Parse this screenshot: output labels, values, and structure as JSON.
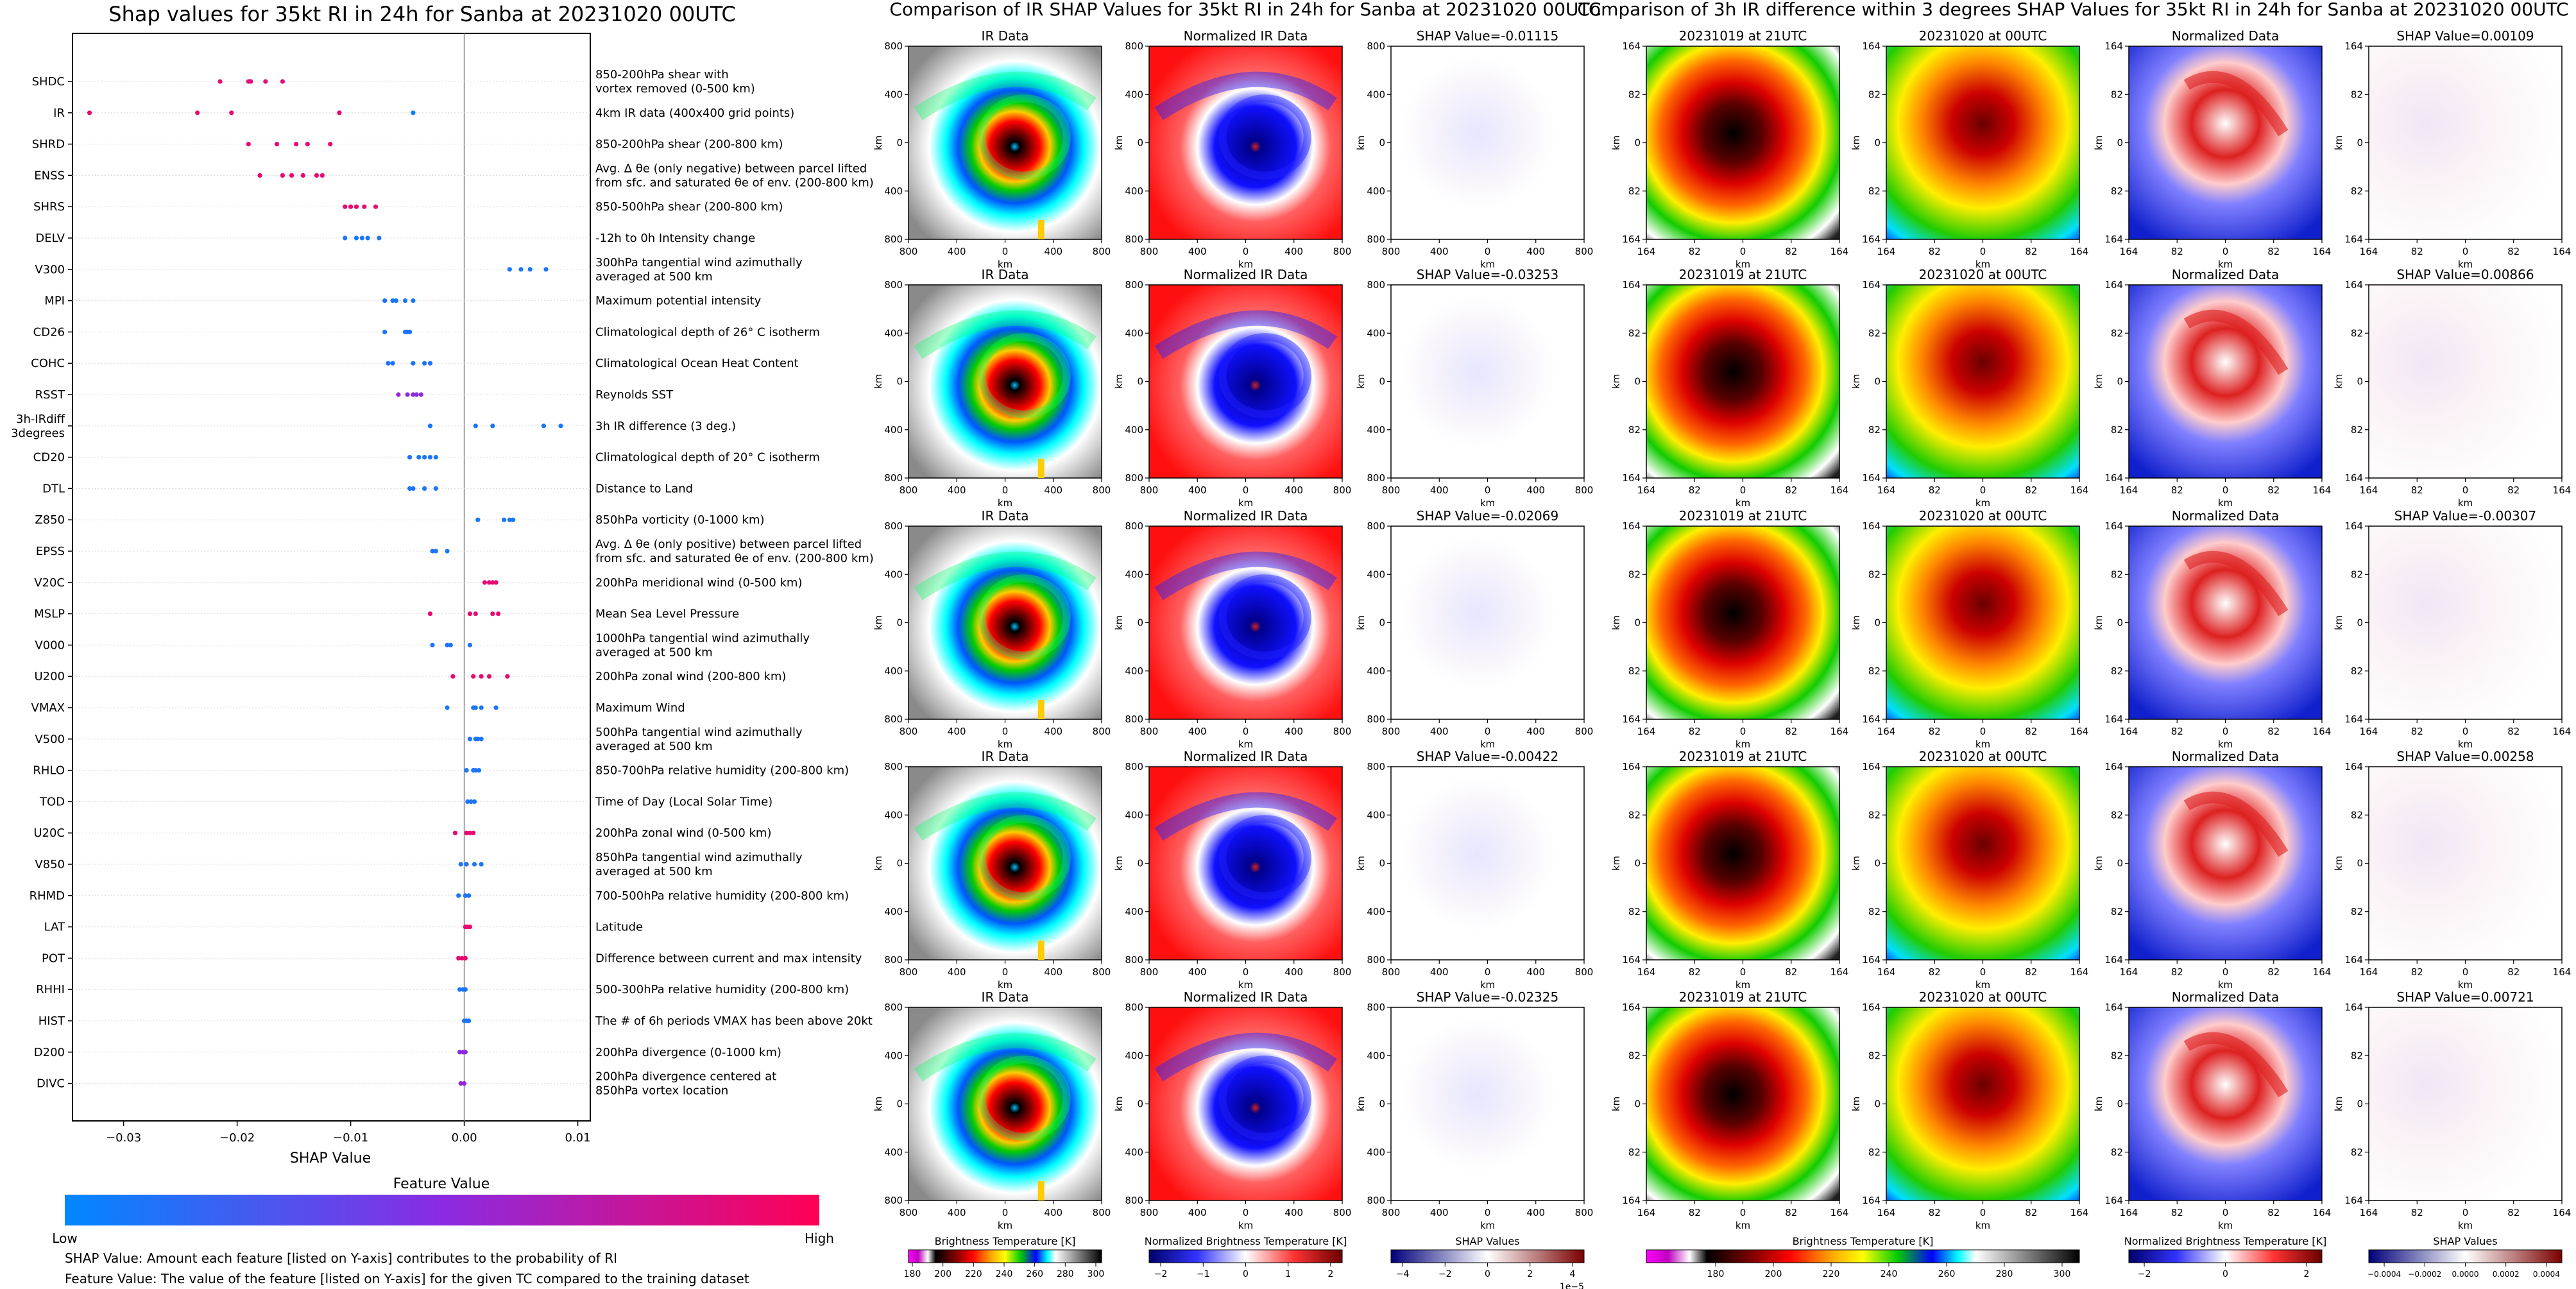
{
  "chart_data": [
    {
      "type": "scatter",
      "title": "Shap values for 35kt RI in 24h for Sanba at 20231020 00UTC",
      "xlabel": "SHAP Value",
      "xlim": [
        -0.0345,
        0.0111
      ],
      "xticks": [
        -0.03,
        -0.02,
        -0.01,
        0.0,
        0.01
      ],
      "xtick_labels": [
        "−0.03",
        "−0.02",
        "−0.01",
        "0.00",
        "0.01"
      ],
      "colorbar": {
        "title": "Feature Value",
        "low_label": "Low",
        "high_label": "High",
        "colors": [
          "#0088ff",
          "#8a2be2",
          "#ff0055"
        ]
      },
      "features": [
        {
          "code": "SHDC",
          "desc": [
            "850-200hPa shear with",
            "vortex removed (0-500 km)"
          ],
          "points": [
            [
              -0.0215,
              0.9
            ],
            [
              -0.019,
              0.88
            ],
            [
              -0.0188,
              0.88
            ],
            [
              -0.0175,
              0.88
            ],
            [
              -0.016,
              0.88
            ]
          ]
        },
        {
          "code": "IR",
          "desc": [
            "4km IR data (400x400 grid points)"
          ],
          "points": [
            [
              -0.033,
              0.9
            ],
            [
              -0.0235,
              0.9
            ],
            [
              -0.0205,
              0.9
            ],
            [
              -0.011,
              0.9
            ],
            [
              -0.0045,
              0.05
            ]
          ]
        },
        {
          "code": "SHRD",
          "desc": [
            "850-200hPa shear (200-800 km)"
          ],
          "points": [
            [
              -0.019,
              0.9
            ],
            [
              -0.0165,
              0.9
            ],
            [
              -0.0148,
              0.9
            ],
            [
              -0.0138,
              0.9
            ],
            [
              -0.0118,
              0.9
            ]
          ]
        },
        {
          "code": "ENSS",
          "desc": [
            "Avg. Δ θe (only negative) between parcel lifted",
            "from sfc. and saturated θe of env. (200-800 km)"
          ],
          "points": [
            [
              -0.018,
              0.9
            ],
            [
              -0.016,
              0.9
            ],
            [
              -0.0152,
              0.9
            ],
            [
              -0.0142,
              0.9
            ],
            [
              -0.013,
              0.9
            ],
            [
              -0.0125,
              0.9
            ]
          ]
        },
        {
          "code": "SHRS",
          "desc": [
            "850-500hPa shear (200-800 km)"
          ],
          "points": [
            [
              -0.0105,
              0.9
            ],
            [
              -0.01,
              0.9
            ],
            [
              -0.0095,
              0.9
            ],
            [
              -0.0088,
              0.9
            ],
            [
              -0.0078,
              0.9
            ]
          ]
        },
        {
          "code": "DELV",
          "desc": [
            "-12h to 0h Intensity change"
          ],
          "points": [
            [
              -0.0105,
              0.1
            ],
            [
              -0.0095,
              0.1
            ],
            [
              -0.009,
              0.1
            ],
            [
              -0.0085,
              0.1
            ],
            [
              -0.0075,
              0.1
            ]
          ]
        },
        {
          "code": "V300",
          "desc": [
            "300hPa tangential wind azimuthally",
            "averaged at 500 km"
          ],
          "points": [
            [
              0.004,
              0.1
            ],
            [
              0.005,
              0.1
            ],
            [
              0.0058,
              0.1
            ],
            [
              0.0072,
              0.1
            ]
          ]
        },
        {
          "code": "MPI",
          "desc": [
            "Maximum potential intensity"
          ],
          "points": [
            [
              -0.007,
              0.1
            ],
            [
              -0.0063,
              0.1
            ],
            [
              -0.006,
              0.1
            ],
            [
              -0.0052,
              0.1
            ],
            [
              -0.0045,
              0.1
            ]
          ]
        },
        {
          "code": "CD26",
          "desc": [
            "Climatological depth of 26° C isotherm"
          ],
          "points": [
            [
              -0.007,
              0.1
            ],
            [
              -0.0052,
              0.1
            ],
            [
              -0.005,
              0.1
            ],
            [
              -0.0048,
              0.1
            ]
          ]
        },
        {
          "code": "COHC",
          "desc": [
            "Climatological Ocean Heat Content"
          ],
          "points": [
            [
              -0.0067,
              0.1
            ],
            [
              -0.0063,
              0.1
            ],
            [
              -0.0045,
              0.1
            ],
            [
              -0.0035,
              0.1
            ],
            [
              -0.003,
              0.1
            ]
          ]
        },
        {
          "code": "RSST",
          "desc": [
            "Reynolds SST"
          ],
          "points": [
            [
              -0.0058,
              0.55
            ],
            [
              -0.005,
              0.5
            ],
            [
              -0.0045,
              0.5
            ],
            [
              -0.0042,
              0.5
            ],
            [
              -0.0038,
              0.5
            ]
          ]
        },
        {
          "code": "3h-IRdiff 3degrees",
          "desc": [
            "3h IR difference (3 deg.)"
          ],
          "points": [
            [
              -0.003,
              0.1
            ],
            [
              0.001,
              0.1
            ],
            [
              0.0025,
              0.1
            ],
            [
              0.007,
              0.1
            ],
            [
              0.0085,
              0.1
            ]
          ]
        },
        {
          "code": "CD20",
          "desc": [
            "Climatological depth of 20° C isotherm"
          ],
          "points": [
            [
              -0.0048,
              0.1
            ],
            [
              -0.004,
              0.1
            ],
            [
              -0.0035,
              0.1
            ],
            [
              -0.003,
              0.1
            ],
            [
              -0.0025,
              0.1
            ]
          ]
        },
        {
          "code": "DTL",
          "desc": [
            "Distance to Land"
          ],
          "points": [
            [
              -0.0048,
              0.1
            ],
            [
              -0.0045,
              0.1
            ],
            [
              -0.0035,
              0.1
            ],
            [
              -0.0025,
              0.1
            ]
          ]
        },
        {
          "code": "Z850",
          "desc": [
            "850hPa vorticity (0-1000 km)"
          ],
          "points": [
            [
              0.0012,
              0.1
            ],
            [
              0.0035,
              0.1
            ],
            [
              0.004,
              0.1
            ],
            [
              0.0043,
              0.1
            ]
          ]
        },
        {
          "code": "EPSS",
          "desc": [
            "Avg. Δ θe (only positive) between parcel lifted",
            "from sfc. and saturated θe of env. (200-800 km)"
          ],
          "points": [
            [
              -0.0028,
              0.1
            ],
            [
              -0.0025,
              0.1
            ],
            [
              -0.0015,
              0.1
            ]
          ]
        },
        {
          "code": "V20C",
          "desc": [
            "200hPa meridional wind (0-500 km)"
          ],
          "points": [
            [
              0.0018,
              0.9
            ],
            [
              0.0022,
              0.9
            ],
            [
              0.0025,
              0.9
            ],
            [
              0.0028,
              0.9
            ]
          ]
        },
        {
          "code": "MSLP",
          "desc": [
            "Mean Sea Level Pressure"
          ],
          "points": [
            [
              -0.003,
              0.9
            ],
            [
              0.0005,
              0.9
            ],
            [
              0.001,
              0.9
            ],
            [
              0.0025,
              0.9
            ],
            [
              0.003,
              0.9
            ]
          ]
        },
        {
          "code": "V000",
          "desc": [
            "1000hPa tangential wind azimuthally",
            "averaged at 500 km"
          ],
          "points": [
            [
              -0.0028,
              0.1
            ],
            [
              -0.0015,
              0.1
            ],
            [
              -0.0012,
              0.1
            ],
            [
              0.0005,
              0.1
            ]
          ]
        },
        {
          "code": "U200",
          "desc": [
            "200hPa zonal wind (200-800 km)"
          ],
          "points": [
            [
              -0.001,
              0.9
            ],
            [
              0.0008,
              0.9
            ],
            [
              0.0015,
              0.9
            ],
            [
              0.0022,
              0.9
            ],
            [
              0.0038,
              0.9
            ]
          ]
        },
        {
          "code": "VMAX",
          "desc": [
            "Maximum Wind"
          ],
          "points": [
            [
              -0.0015,
              0.1
            ],
            [
              0.0008,
              0.1
            ],
            [
              0.001,
              0.1
            ],
            [
              0.0015,
              0.1
            ],
            [
              0.0028,
              0.1
            ]
          ]
        },
        {
          "code": "V500",
          "desc": [
            "500hPa tangential wind azimuthally",
            "averaged at 500 km"
          ],
          "points": [
            [
              0.0005,
              0.1
            ],
            [
              0.001,
              0.1
            ],
            [
              0.0012,
              0.1
            ],
            [
              0.0015,
              0.1
            ]
          ]
        },
        {
          "code": "RHLO",
          "desc": [
            "850-700hPa relative humidity (200-800 km)"
          ],
          "points": [
            [
              0.0002,
              0.1
            ],
            [
              0.0008,
              0.1
            ],
            [
              0.001,
              0.1
            ],
            [
              0.0013,
              0.1
            ]
          ]
        },
        {
          "code": "TOD",
          "desc": [
            "Time of Day (Local Solar Time)"
          ],
          "points": [
            [
              0.0003,
              0.1
            ],
            [
              0.0006,
              0.1
            ],
            [
              0.0009,
              0.1
            ]
          ]
        },
        {
          "code": "U20C",
          "desc": [
            "200hPa zonal wind (0-500 km)"
          ],
          "points": [
            [
              -0.0008,
              0.9
            ],
            [
              0.0002,
              0.9
            ],
            [
              0.0005,
              0.9
            ],
            [
              0.0008,
              0.9
            ]
          ]
        },
        {
          "code": "V850",
          "desc": [
            "850hPa tangential wind azimuthally",
            "averaged at 500 km"
          ],
          "points": [
            [
              -0.0003,
              0.1
            ],
            [
              0.0002,
              0.1
            ],
            [
              0.0009,
              0.1
            ],
            [
              0.0015,
              0.1
            ]
          ]
        },
        {
          "code": "RHMD",
          "desc": [
            "700-500hPa relative humidity (200-800 km)"
          ],
          "points": [
            [
              -0.0005,
              0.1
            ],
            [
              0.0001,
              0.1
            ],
            [
              0.0004,
              0.1
            ]
          ]
        },
        {
          "code": "LAT",
          "desc": [
            "Latitude"
          ],
          "points": [
            [
              0.0001,
              0.9
            ],
            [
              0.0003,
              0.9
            ],
            [
              0.0005,
              0.9
            ]
          ]
        },
        {
          "code": "POT",
          "desc": [
            "Difference between current and max intensity"
          ],
          "points": [
            [
              -0.0005,
              0.9
            ],
            [
              -0.0002,
              0.9
            ],
            [
              0.0001,
              0.9
            ]
          ]
        },
        {
          "code": "RHHI",
          "desc": [
            "500-300hPa relative humidity (200-800 km)"
          ],
          "points": [
            [
              -0.0004,
              0.1
            ],
            [
              -0.0001,
              0.1
            ],
            [
              0.0001,
              0.1
            ]
          ]
        },
        {
          "code": "HIST",
          "desc": [
            "The # of 6h periods VMAX has been above 20kt"
          ],
          "points": [
            [
              0.0,
              0.1
            ],
            [
              0.0002,
              0.1
            ],
            [
              0.0004,
              0.1
            ]
          ]
        },
        {
          "code": "D200",
          "desc": [
            "200hPa divergence (0-1000 km)"
          ],
          "points": [
            [
              -0.0004,
              0.5
            ],
            [
              -0.0001,
              0.5
            ],
            [
              0.0001,
              0.5
            ]
          ]
        },
        {
          "code": "DIVC",
          "desc": [
            "200hPa divergence centered at",
            "850hPa vortex location"
          ],
          "points": [
            [
              -0.0003,
              0.55
            ],
            [
              0.0,
              0.55
            ]
          ]
        }
      ],
      "footnotes": [
        "SHAP Value: Amount each feature [listed on Y-axis] contributes to the probability of RI",
        "Feature Value: The value of the feature [listed on Y-axis] for the given TC compared to the training dataset"
      ]
    },
    {
      "type": "heatmap",
      "title": "Comparison of IR SHAP Values for 35kt RI in 24h for Sanba at 20231020 00UTC",
      "column_titles": [
        "IR Data",
        "Normalized IR Data"
      ],
      "shap_titles": [
        "SHAP Value=-0.01115",
        "SHAP Value=-0.03253",
        "SHAP Value=-0.02069",
        "SHAP Value=-0.00422",
        "SHAP Value=-0.02325"
      ],
      "xlabel": "km",
      "ylabel": "km",
      "xtick_labels": [
        "800",
        "400",
        "0",
        "400",
        "800"
      ],
      "ytick_labels": [
        "800",
        "400",
        "0",
        "400",
        "800"
      ],
      "colorbars": [
        {
          "label": "Brightness Temperature [K]",
          "ticks": [
            "180",
            "200",
            "220",
            "240",
            "260",
            "280",
            "300"
          ]
        },
        {
          "label": "Normalized Brightness Temperature [K]",
          "ticks": [
            "−2",
            "−1",
            "0",
            "1",
            "2"
          ]
        },
        {
          "label": "SHAP Values",
          "ticks": [
            "−4",
            "−2",
            "0",
            "2",
            "4"
          ],
          "exponent": "1e−5"
        }
      ]
    },
    {
      "type": "heatmap",
      "title": "Comparison of 3h IR difference within 3 degrees SHAP Values for 35kt RI in 24h for Sanba at 20231020 00UTC",
      "column_titles": [
        "20231019 at 21UTC",
        "20231020 at 00UTC",
        "Normalized Data"
      ],
      "shap_titles": [
        "SHAP Value=0.00109",
        "SHAP Value=0.00866",
        "SHAP Value=-0.00307",
        "SHAP Value=0.00258",
        "SHAP Value=0.00721"
      ],
      "xlabel": "km",
      "ylabel": "km",
      "xtick_labels": [
        "164",
        "82",
        "0",
        "82",
        "164"
      ],
      "ytick_labels": [
        "164",
        "82",
        "0",
        "82",
        "164"
      ],
      "colorbars": [
        {
          "label": "Brightness Temperature [K]",
          "ticks": [
            "180",
            "200",
            "220",
            "240",
            "260",
            "280",
            "300"
          ]
        },
        {
          "label": "Normalized Brightness Temperature [K]",
          "ticks": [
            "−2",
            "0",
            "2"
          ]
        },
        {
          "label": "SHAP Values",
          "ticks": [
            "−0.0004",
            "−0.0002",
            "0.0000",
            "0.0002",
            "0.0004"
          ]
        }
      ]
    }
  ]
}
